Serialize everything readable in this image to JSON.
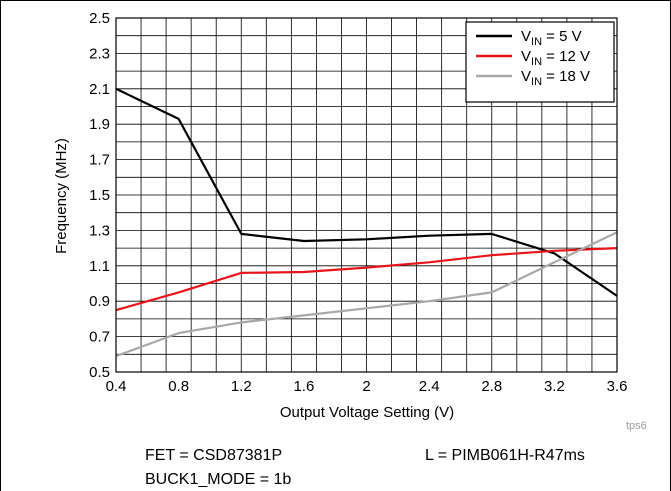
{
  "chart_data": {
    "type": "line",
    "xlabel": "Output Voltage Setting (V)",
    "ylabel": "Frequency (MHz)",
    "xlim": [
      0.4,
      3.6
    ],
    "ylim": [
      0.5,
      2.5
    ],
    "x_ticks": [
      "0.4",
      "0.8",
      "1.2",
      "1.6",
      "2",
      "2.4",
      "2.8",
      "3.2",
      "3.6"
    ],
    "y_ticks": [
      "0.5",
      "0.7",
      "0.9",
      "1.1",
      "1.3",
      "1.5",
      "1.7",
      "1.9",
      "2.1",
      "2.3",
      "2.5"
    ],
    "grid": true,
    "legend_position": "top-right",
    "series": [
      {
        "name": "V_IN = 5 V",
        "legend_main": "V",
        "legend_sub": "IN",
        "legend_rest": " = 5 V",
        "color": "#000000",
        "x": [
          0.4,
          0.8,
          1.2,
          1.6,
          2.0,
          2.4,
          2.8,
          3.2,
          3.6
        ],
        "y": [
          2.1,
          1.93,
          1.28,
          1.24,
          1.25,
          1.27,
          1.28,
          1.17,
          0.93
        ]
      },
      {
        "name": "V_IN = 12 V",
        "legend_main": "V",
        "legend_sub": "IN",
        "legend_rest": " = 12 V",
        "color": "#e8141b",
        "x": [
          0.4,
          0.8,
          1.2,
          1.6,
          2.0,
          2.4,
          2.8,
          3.2,
          3.6
        ],
        "y": [
          0.85,
          0.95,
          1.06,
          1.065,
          1.09,
          1.12,
          1.16,
          1.185,
          1.2
        ]
      },
      {
        "name": "V_IN = 18 V",
        "legend_main": "V",
        "legend_sub": "IN",
        "legend_rest": " = 18 V",
        "color": "#a8a8a8",
        "x": [
          0.4,
          0.8,
          1.2,
          1.6,
          2.0,
          2.4,
          2.8,
          3.2,
          3.6
        ],
        "y": [
          0.59,
          0.72,
          0.78,
          0.82,
          0.86,
          0.9,
          0.95,
          1.12,
          1.29
        ]
      }
    ]
  },
  "footer": {
    "fet": "FET = CSD87381P",
    "inductor": "L = PIMB061H-R47ms",
    "mode": "BUCK1_MODE = 1b",
    "code": "tps6"
  }
}
